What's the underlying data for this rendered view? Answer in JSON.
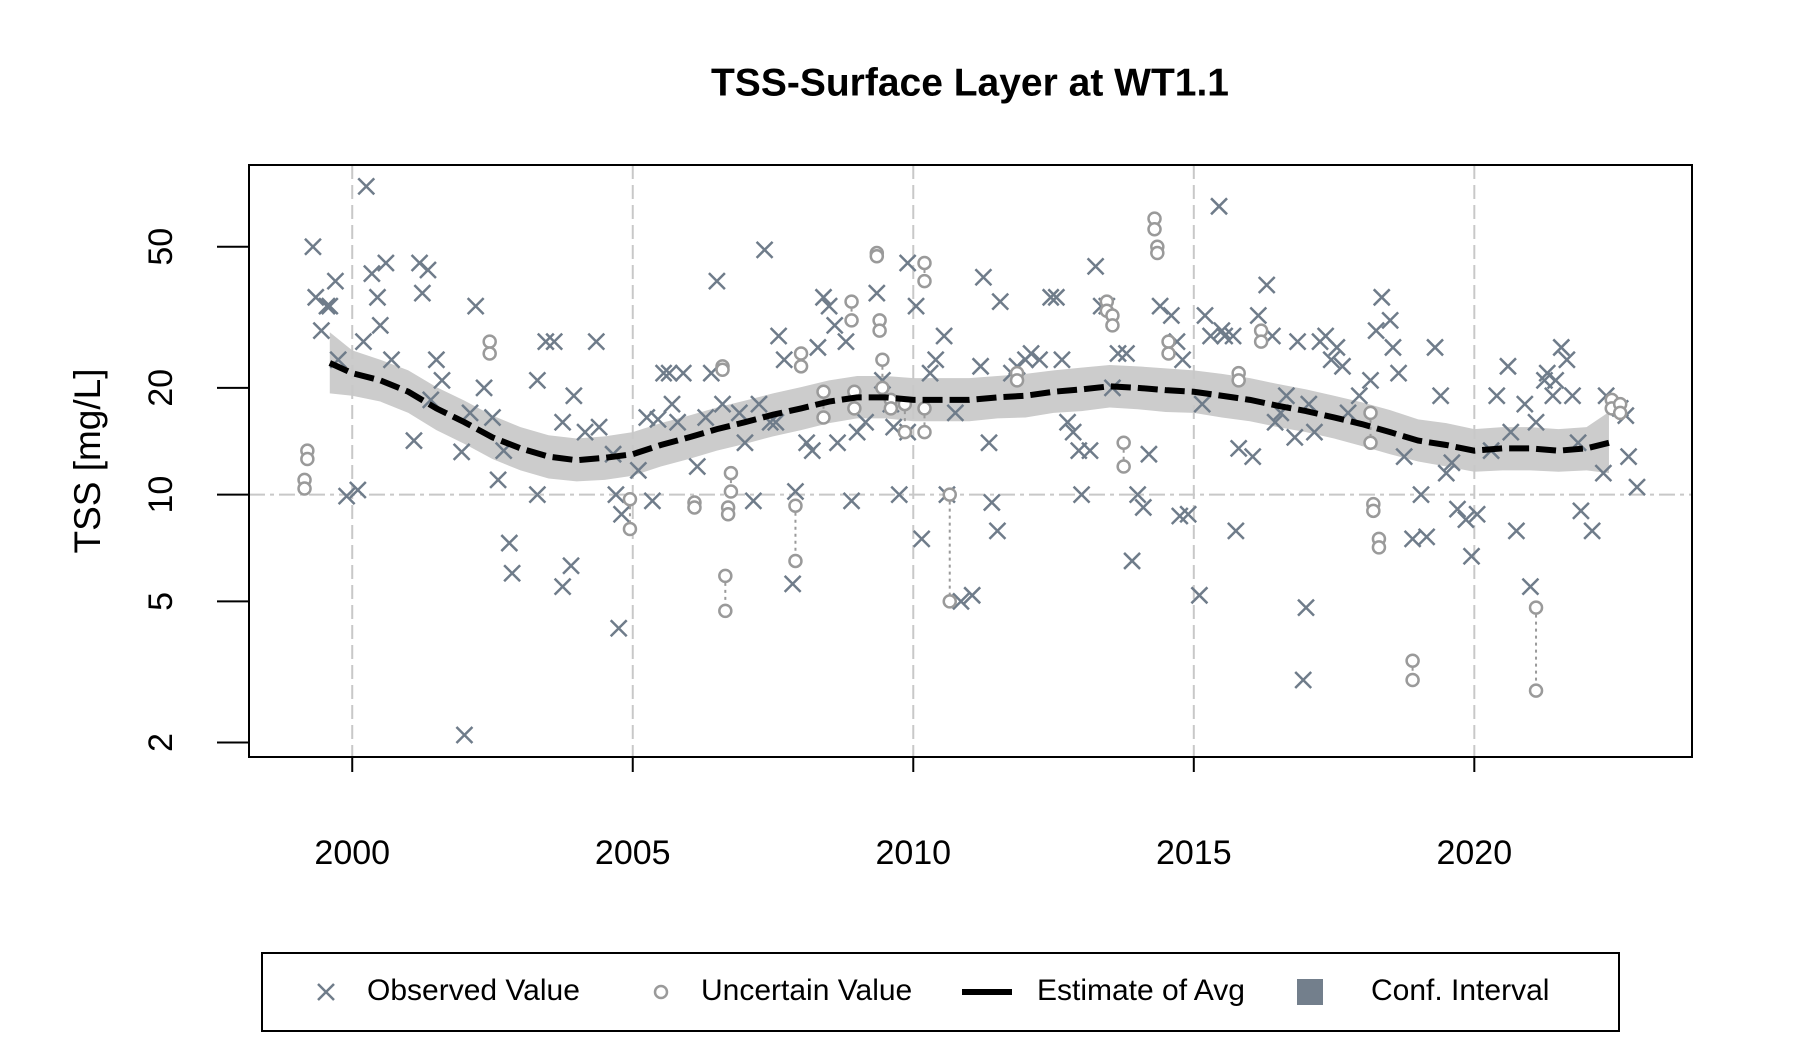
{
  "chart_data": {
    "type": "scatter",
    "title": "TSS-Surface Layer at WT1.1",
    "y_label": "TSS [mg/L]",
    "log_y": true,
    "grid_x": true,
    "reference_y": 10,
    "legend_position": "bottom",
    "xlim": [
      1998.16,
      2023.88
    ],
    "ylim": [
      1.82,
      85
    ],
    "xticks": [
      2000,
      2005,
      2010,
      2015,
      2020
    ],
    "yticks": [
      2,
      5,
      10,
      20,
      50
    ],
    "series": [
      {
        "name": "Observed Value",
        "type": "scatter",
        "marker": "x",
        "color": "#6f7c8a",
        "x": [
          1999.3,
          1999.35,
          1999.45,
          1999.55,
          1999.6,
          1999.7,
          1999.75,
          1999.9,
          2000.1,
          2000.2,
          2000.25,
          2000.35,
          2000.45,
          2000.5,
          2000.6,
          2000.7,
          2001.1,
          2001.2,
          2001.25,
          2001.35,
          2001.4,
          2001.5,
          2001.6,
          2001.95,
          2002.0,
          2002.1,
          2002.2,
          2002.35,
          2002.5,
          2002.6,
          2002.7,
          2002.8,
          2002.85,
          2003.3,
          2003.3,
          2003.45,
          2003.6,
          2003.75,
          2003.75,
          2003.9,
          2003.95,
          2004.15,
          2004.35,
          2004.4,
          2004.65,
          2004.7,
          2004.75,
          2004.8,
          2005.1,
          2005.25,
          2005.35,
          2005.45,
          2005.55,
          2005.65,
          2005.7,
          2005.8,
          2005.9,
          2006.15,
          2006.3,
          2006.4,
          2006.5,
          2006.6,
          2006.9,
          2007.0,
          2007.15,
          2007.25,
          2007.35,
          2007.45,
          2007.55,
          2007.6,
          2007.7,
          2007.85,
          2007.9,
          2008.1,
          2008.2,
          2008.3,
          2008.4,
          2008.5,
          2008.6,
          2008.65,
          2008.8,
          2008.9,
          2009.0,
          2009.15,
          2009.35,
          2009.45,
          2009.6,
          2009.65,
          2009.75,
          2009.9,
          2009.9,
          2010.05,
          2010.15,
          2010.3,
          2010.4,
          2010.55,
          2010.6,
          2010.75,
          2010.85,
          2011.05,
          2011.2,
          2011.25,
          2011.35,
          2011.4,
          2011.5,
          2011.55,
          2011.75,
          2011.85,
          2012.0,
          2012.1,
          2012.25,
          2012.45,
          2012.55,
          2012.65,
          2012.75,
          2012.85,
          2012.95,
          2013.0,
          2013.15,
          2013.25,
          2013.35,
          2013.45,
          2013.55,
          2013.65,
          2013.8,
          2013.9,
          2014.0,
          2014.1,
          2014.2,
          2014.4,
          2014.6,
          2014.7,
          2014.8,
          2014.75,
          2014.9,
          2015.1,
          2015.15,
          2015.2,
          2015.3,
          2015.45,
          2015.5,
          2015.55,
          2015.7,
          2015.75,
          2015.8,
          2016.05,
          2016.15,
          2016.3,
          2016.4,
          2016.45,
          2016.55,
          2016.65,
          2016.8,
          2016.85,
          2017.0,
          2016.95,
          2017.05,
          2017.15,
          2017.25,
          2017.35,
          2017.45,
          2017.55,
          2017.65,
          2017.75,
          2017.95,
          2018.15,
          2018.25,
          2018.35,
          2018.5,
          2018.55,
          2018.65,
          2018.75,
          2018.9,
          2019.05,
          2019.15,
          2019.3,
          2019.4,
          2019.5,
          2019.6,
          2019.7,
          2019.85,
          2019.95,
          2020.05,
          2020.3,
          2020.4,
          2020.6,
          2020.65,
          2020.75,
          2020.9,
          2021.0,
          2021.1,
          2021.25,
          2021.3,
          2021.4,
          2021.45,
          2021.55,
          2021.65,
          2021.75,
          2021.85,
          2021.9,
          2022.1,
          2022.3,
          2022.35,
          2022.6,
          2022.7,
          2022.75,
          2022.9
        ],
        "values": [
          50,
          36,
          29,
          34,
          34,
          40,
          24,
          9.9,
          10.3,
          27,
          74,
          42,
          36,
          30,
          45,
          24,
          14.2,
          45,
          37,
          43,
          18.5,
          24,
          21,
          13.2,
          2.1,
          17,
          34,
          20,
          16.5,
          11,
          13.3,
          7.3,
          6,
          21,
          10,
          27,
          27,
          16,
          5.5,
          6.3,
          19,
          15,
          27,
          15.5,
          13,
          10,
          4.2,
          8.8,
          11.7,
          16.5,
          9.6,
          16.3,
          22,
          22,
          18,
          16,
          22,
          12,
          16.5,
          22,
          40,
          18,
          17,
          14,
          9.6,
          18,
          49,
          16,
          16,
          28,
          24,
          5.6,
          10.2,
          14,
          13.3,
          26,
          36,
          34,
          30,
          14,
          27,
          9.6,
          15,
          16,
          37,
          21,
          18,
          15.5,
          10,
          15,
          45,
          34,
          7.5,
          22,
          24,
          28,
          10,
          17,
          5,
          5.2,
          23,
          41,
          14,
          9.5,
          7.9,
          35,
          22,
          23,
          24,
          25,
          24,
          36,
          36,
          24,
          16,
          15,
          13.3,
          10,
          13.3,
          44,
          34,
          34,
          20,
          25,
          25,
          6.5,
          10,
          9.2,
          13,
          34,
          32,
          27,
          24,
          8.7,
          8.8,
          5.2,
          18,
          32,
          28,
          65,
          29,
          28,
          28,
          7.9,
          13.5,
          12.8,
          32,
          39,
          28,
          16,
          17,
          19,
          14.5,
          27,
          4.8,
          3,
          18,
          15,
          27,
          28,
          24,
          26,
          23,
          17,
          19,
          21,
          29,
          36,
          31,
          26,
          22,
          12.8,
          7.5,
          10,
          7.6,
          26,
          19,
          11.5,
          12.3,
          9.1,
          8.5,
          6.7,
          8.8,
          13.3,
          19,
          23,
          15,
          7.9,
          18,
          5.5,
          16,
          21,
          22,
          19,
          21,
          26,
          24,
          19,
          14,
          9,
          7.9,
          11.5,
          19,
          17.5,
          16.7,
          12.8,
          10.5
        ]
      },
      {
        "name": "Uncertain Value",
        "type": "interval",
        "marker": "o",
        "color": "#9a9a9a",
        "x": [
          1999.15,
          1999.2,
          2002.45,
          2004.95,
          2006.1,
          2006.6,
          2006.65,
          2006.75,
          2006.7,
          2007.9,
          2008.0,
          2008.4,
          2008.95,
          2008.9,
          2009.35,
          2009.4,
          2009.45,
          2009.6,
          2009.85,
          2010.2,
          2010.2,
          2010.65,
          2011.85,
          2013.45,
          2013.55,
          2013.75,
          2014.3,
          2014.35,
          2014.55,
          2015.8,
          2016.2,
          2018.15,
          2018.2,
          2018.3,
          2018.9,
          2021.1,
          2022.45,
          2022.6
        ],
        "values": [
          11,
          13.3,
          27,
          9.7,
          9.5,
          23,
          5.9,
          11.5,
          9.2,
          9.3,
          25,
          19.5,
          19.5,
          35,
          48,
          31,
          24,
          18.5,
          18,
          45,
          17.5,
          10,
          22,
          35,
          32,
          14,
          60,
          50,
          27,
          22,
          29,
          17,
          9.4,
          7.5,
          3.4,
          4.8,
          18.5,
          18
        ],
        "values_low": [
          10.4,
          12.6,
          25,
          8,
          9.2,
          22.5,
          4.7,
          10.2,
          8.8,
          6.5,
          23,
          16.5,
          17.5,
          31,
          47,
          29,
          20,
          17.5,
          15,
          40,
          15,
          5,
          21,
          33,
          30,
          12,
          56,
          48,
          25,
          21,
          27,
          14,
          9,
          7.1,
          3,
          2.8,
          17.5,
          17
        ]
      },
      {
        "name": "Estimate of Avg",
        "type": "line",
        "marker": "line",
        "color": "#000000",
        "x": [
          1999.6,
          2000,
          2000.5,
          2001,
          2001.5,
          2002,
          2002.5,
          2003,
          2003.5,
          2004,
          2004.5,
          2005,
          2005.5,
          2006,
          2006.5,
          2007,
          2007.5,
          2008,
          2008.5,
          2009,
          2009.5,
          2010,
          2010.5,
          2011,
          2011.5,
          2012,
          2012.5,
          2013,
          2013.5,
          2014,
          2014.5,
          2015,
          2015.5,
          2016,
          2016.5,
          2017,
          2017.5,
          2018,
          2018.5,
          2019,
          2019.5,
          2020,
          2020.5,
          2021,
          2021.5,
          2022,
          2022.4
        ],
        "values": [
          23.5,
          22,
          21,
          19.5,
          17.5,
          16,
          14.5,
          13.5,
          12.8,
          12.5,
          12.7,
          13,
          13.8,
          14.5,
          15.3,
          16,
          16.8,
          17.5,
          18.3,
          18.8,
          18.8,
          18.5,
          18.5,
          18.5,
          18.8,
          19,
          19.5,
          19.8,
          20.2,
          20,
          19.7,
          19.5,
          19,
          18.5,
          17.8,
          17.2,
          16.5,
          15.8,
          15,
          14.2,
          13.8,
          13.3,
          13.5,
          13.5,
          13.3,
          13.5,
          14
        ]
      },
      {
        "name": "Conf. Interval",
        "type": "band",
        "marker": "square",
        "color": "#cccccc",
        "legend_color": "#737f8c",
        "x": [
          1999.6,
          2000,
          2000.5,
          2001,
          2001.5,
          2002,
          2002.5,
          2003,
          2003.5,
          2004,
          2004.5,
          2005,
          2005.5,
          2006,
          2006.5,
          2007,
          2007.5,
          2008,
          2008.5,
          2009,
          2009.5,
          2010,
          2010.5,
          2011,
          2011.5,
          2012,
          2012.5,
          2013,
          2013.5,
          2014,
          2014.5,
          2015,
          2015.5,
          2016,
          2016.5,
          2017,
          2017.5,
          2018,
          2018.5,
          2019,
          2019.5,
          2020,
          2020.5,
          2021,
          2021.5,
          2022,
          2022.4
        ],
        "lower": [
          19.3,
          19,
          18.3,
          17,
          15.2,
          13.9,
          12.6,
          11.7,
          11.1,
          10.9,
          11,
          11.3,
          12,
          12.6,
          13.3,
          13.9,
          14.6,
          15.2,
          15.9,
          16.4,
          16.4,
          16.1,
          16.1,
          16.1,
          16.4,
          16.5,
          17,
          17.2,
          17.6,
          17.4,
          17.1,
          17,
          16.5,
          16.1,
          15.5,
          15,
          14.4,
          13.7,
          13,
          12.4,
          12,
          11.6,
          11.7,
          11.7,
          11.6,
          11.7,
          11.5
        ],
        "upper": [
          28.7,
          25.5,
          24,
          22.4,
          20.1,
          18.4,
          16.7,
          15.5,
          14.7,
          14.4,
          14.6,
          15,
          15.9,
          16.7,
          17.6,
          18.4,
          19.3,
          20.1,
          21,
          21.6,
          21.6,
          21.3,
          21.3,
          21.3,
          21.6,
          21.9,
          22.4,
          22.8,
          23.2,
          23,
          22.7,
          22.4,
          21.9,
          21.3,
          20.5,
          19.8,
          19,
          18.2,
          17.3,
          16.3,
          15.9,
          15.3,
          15.5,
          15.5,
          15.3,
          15.5,
          17.1
        ]
      }
    ]
  }
}
